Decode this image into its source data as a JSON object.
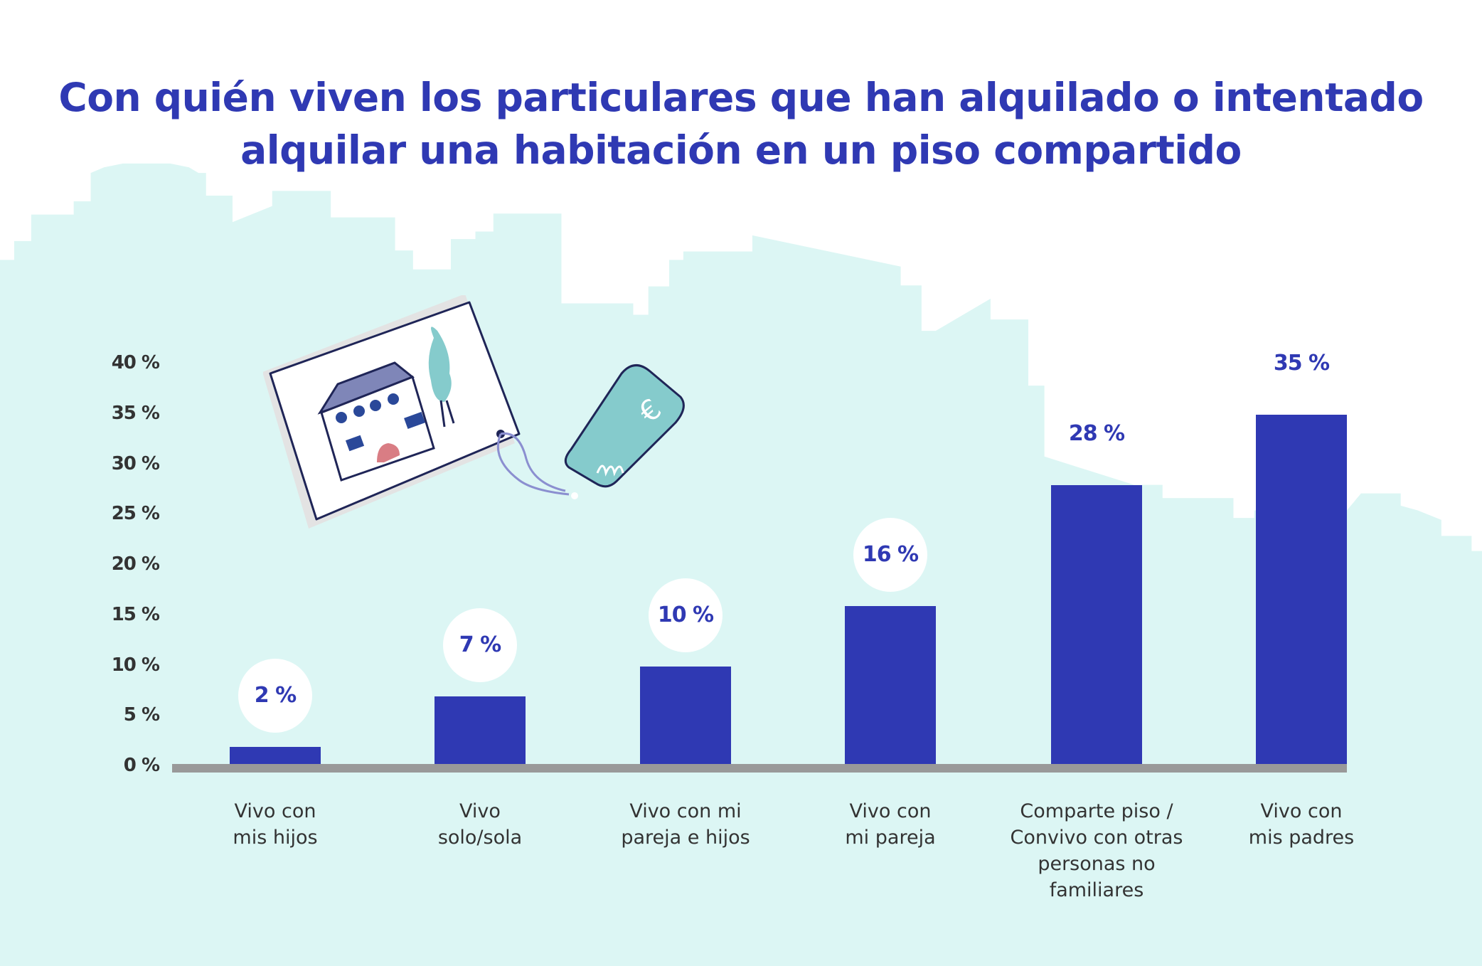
{
  "title": {
    "line1": "Con quién viven los particulares que han alquilado o intentado",
    "line2": "alquilar una habitación en un piso compartido"
  },
  "colors": {
    "bar": "#2f39b3",
    "label": "#2f39b3",
    "axis": "#999999",
    "skyline": "#dcf6f4",
    "text": "#333333"
  },
  "illustration": {
    "description_icon": "house-listing-with-price-tag-icon"
  },
  "chart_data": {
    "type": "bar",
    "title": "Con quién viven los particulares que han alquilado o intentado alquilar una habitación en un piso compartido",
    "xlabel": "",
    "ylabel": "",
    "ylim": [
      0,
      40
    ],
    "yticks": [
      "0 %",
      "5 %",
      "10 %",
      "15 %",
      "20 %",
      "25 %",
      "30 %",
      "35 %",
      "40 %"
    ],
    "grid": false,
    "categories": [
      [
        "Vivo con",
        "mis hijos"
      ],
      [
        "Vivo",
        "solo/sola"
      ],
      [
        "Vivo con mi",
        "pareja e hijos"
      ],
      [
        "Vivo con",
        "mi pareja"
      ],
      [
        "Comparte piso /",
        "Convivo con otras",
        "personas no",
        "familiares"
      ],
      [
        "Vivo con",
        "mis padres"
      ]
    ],
    "values": [
      2,
      7,
      10,
      16,
      28,
      35
    ],
    "data_labels": [
      "2 %",
      "7 %",
      "10 %",
      "16 %",
      "28 %",
      "35 %"
    ]
  }
}
